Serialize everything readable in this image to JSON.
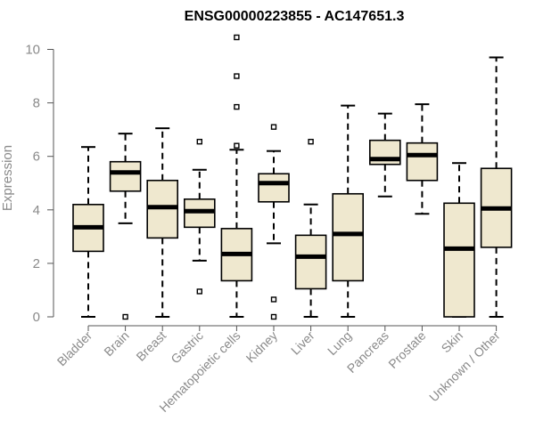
{
  "chart_data": {
    "type": "boxplot",
    "title": "ENSG00000223855 - AC147651.3",
    "xlabel": "",
    "ylabel": "Expression",
    "ylim": [
      0,
      10.5
    ],
    "yticks": [
      0,
      2,
      4,
      6,
      8,
      10
    ],
    "grid": false,
    "colors": {
      "box_fill": "#efe8cf",
      "stroke": "#000000",
      "axis": "#555555",
      "tick_text": "#8a8a8a"
    },
    "categories": [
      "Bladder",
      "Brain",
      "Breast",
      "Gastric",
      "Hematopoietic cells",
      "Kidney",
      "Liver",
      "Lung",
      "Pancreas",
      "Prostate",
      "Skin",
      "Unknown / Other"
    ],
    "boxes": [
      {
        "category": "Bladder",
        "whisker_low": 0,
        "q1": 2.45,
        "median": 3.35,
        "q3": 4.2,
        "whisker_high": 6.35,
        "outliers": []
      },
      {
        "category": "Brain",
        "whisker_low": 3.5,
        "q1": 4.7,
        "median": 5.4,
        "q3": 5.8,
        "whisker_high": 6.85,
        "outliers": [
          0
        ]
      },
      {
        "category": "Breast",
        "whisker_low": 0,
        "q1": 2.95,
        "median": 4.1,
        "q3": 5.1,
        "whisker_high": 7.05,
        "outliers": []
      },
      {
        "category": "Gastric",
        "whisker_low": 2.1,
        "q1": 3.35,
        "median": 3.95,
        "q3": 4.4,
        "whisker_high": 5.5,
        "outliers": [
          6.55,
          0.95
        ]
      },
      {
        "category": "Hematopoietic cells",
        "whisker_low": 0,
        "q1": 1.35,
        "median": 2.35,
        "q3": 3.3,
        "whisker_high": 6.25,
        "outliers": [
          10.45,
          9.0,
          7.85,
          6.4
        ]
      },
      {
        "category": "Kidney",
        "whisker_low": 2.75,
        "q1": 4.3,
        "median": 5.0,
        "q3": 5.35,
        "whisker_high": 6.2,
        "outliers": [
          7.1,
          0.65,
          0
        ]
      },
      {
        "category": "Liver",
        "whisker_low": 0,
        "q1": 1.05,
        "median": 2.25,
        "q3": 3.05,
        "whisker_high": 4.2,
        "outliers": [
          6.55
        ]
      },
      {
        "category": "Lung",
        "whisker_low": 0,
        "q1": 1.35,
        "median": 3.1,
        "q3": 4.6,
        "whisker_high": 7.9,
        "outliers": []
      },
      {
        "category": "Pancreas",
        "whisker_low": 4.5,
        "q1": 5.7,
        "median": 5.9,
        "q3": 6.6,
        "whisker_high": 7.6,
        "outliers": []
      },
      {
        "category": "Prostate",
        "whisker_low": 3.85,
        "q1": 5.1,
        "median": 6.05,
        "q3": 6.5,
        "whisker_high": 7.95,
        "outliers": []
      },
      {
        "category": "Skin",
        "whisker_low": 0,
        "q1": 0,
        "median": 2.55,
        "q3": 4.25,
        "whisker_high": 5.75,
        "outliers": []
      },
      {
        "category": "Unknown / Other",
        "whisker_low": 0,
        "q1": 2.6,
        "median": 4.05,
        "q3": 5.55,
        "whisker_high": 9.7,
        "outliers": []
      }
    ]
  }
}
